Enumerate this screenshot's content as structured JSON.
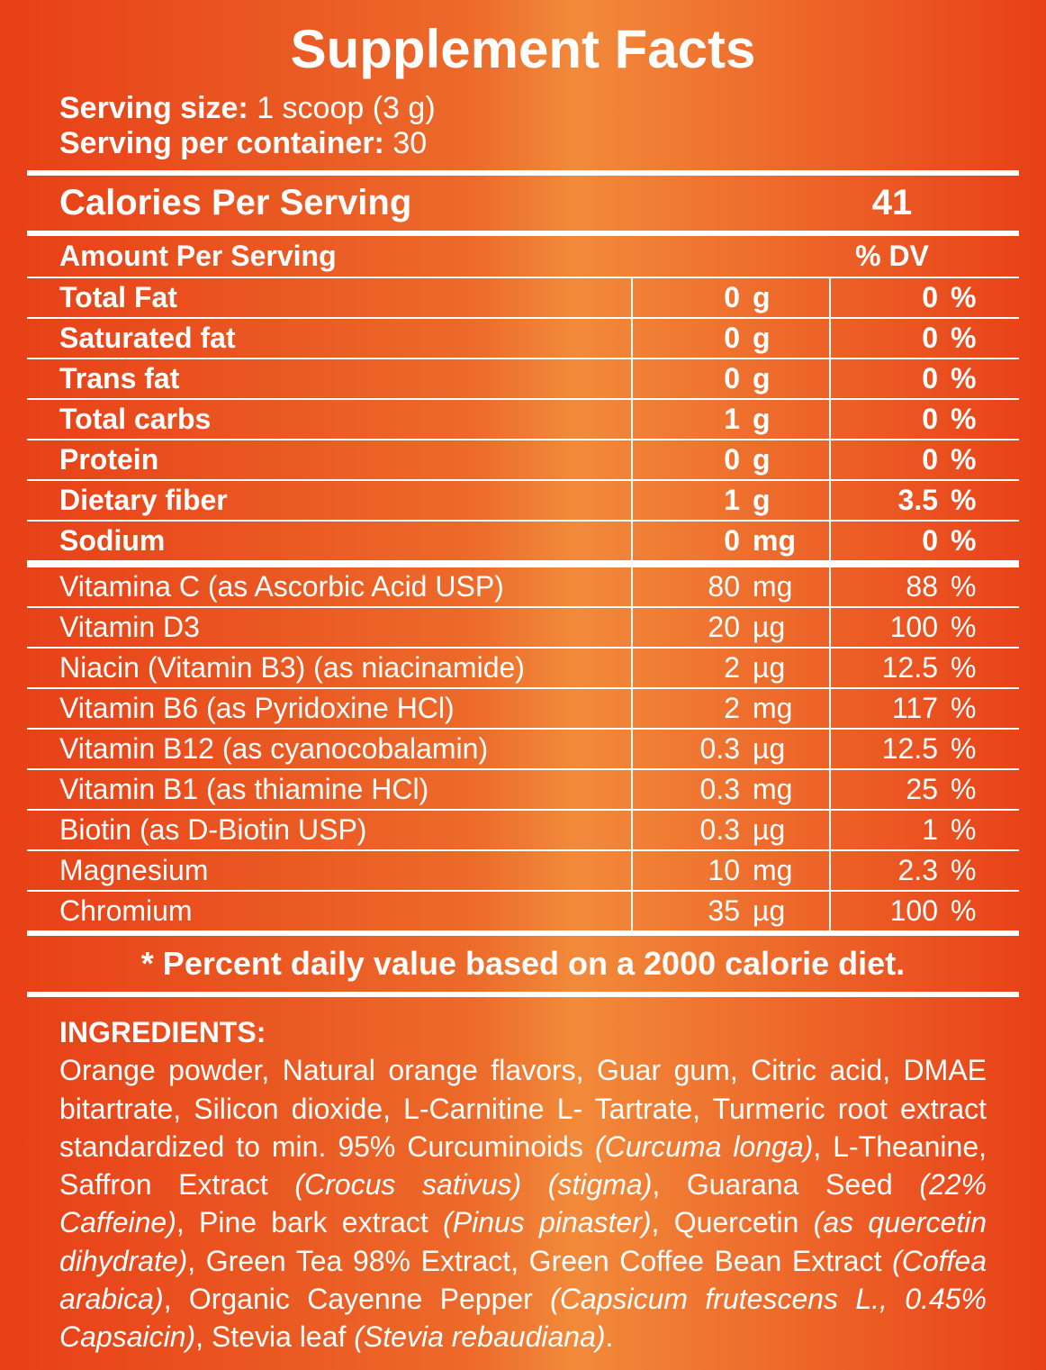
{
  "title": "Supplement Facts",
  "serving": {
    "size_label": "Serving size:",
    "size_value": " 1 scoop (3 g)",
    "per_container_label": "Serving per container:",
    "per_container_value": " 30"
  },
  "calories": {
    "label": "Calories Per Serving",
    "value": "41"
  },
  "amount_header": {
    "label": "Amount Per Serving",
    "dv": "% DV"
  },
  "macros": [
    {
      "name": "Total Fat",
      "amt": "0",
      "unit": "g",
      "dv": "0",
      "pct": "%"
    },
    {
      "name": "Saturated fat",
      "amt": "0",
      "unit": "g",
      "dv": "0",
      "pct": "%"
    },
    {
      "name": "Trans fat",
      "amt": "0",
      "unit": "g",
      "dv": "0",
      "pct": "%"
    },
    {
      "name": "Total carbs",
      "amt": "1",
      "unit": "g",
      "dv": "0",
      "pct": "%"
    },
    {
      "name": "Protein",
      "amt": "0",
      "unit": "g",
      "dv": "0",
      "pct": "%"
    },
    {
      "name": "Dietary fiber",
      "amt": "1",
      "unit": "g",
      "dv": "3.5",
      "pct": "%"
    },
    {
      "name": "Sodium",
      "amt": "0",
      "unit": "mg",
      "dv": "0",
      "pct": "%"
    }
  ],
  "vitamins": [
    {
      "name": "Vitamina C (as Ascorbic Acid USP)",
      "amt": "80",
      "unit": "mg",
      "dv": "88",
      "pct": "%"
    },
    {
      "name": "Vitamin D3",
      "amt": "20",
      "unit": "µg",
      "dv": "100",
      "pct": "%"
    },
    {
      "name": "Niacin (Vitamin B3) (as niacinamide)",
      "amt": "2",
      "unit": "µg",
      "dv": "12.5",
      "pct": " %"
    },
    {
      "name": "Vitamin B6 (as Pyridoxine HCl)",
      "amt": "2",
      "unit": "mg",
      "dv": "117",
      "pct": " %"
    },
    {
      "name": "Vitamin B12 (as cyanocobalamin)",
      "amt": "0.3",
      "unit": "µg",
      "dv": "12.5",
      "pct": " %"
    },
    {
      "name": "Vitamin B1 (as thiamine HCl)",
      "amt": "0.3",
      "unit": "mg",
      "dv": "25",
      "pct": " %"
    },
    {
      "name": "Biotin (as D-Biotin USP)",
      "amt": "0.3",
      "unit": "µg",
      "dv": "1",
      "pct": " %"
    },
    {
      "name": "Magnesium",
      "amt": "10",
      "unit": " mg",
      "dv": "2.3",
      "pct": " %"
    },
    {
      "name": "Chromium",
      "amt": "35",
      "unit": "µg",
      "dv": "100",
      "pct": " %"
    }
  ],
  "footnote": "* Percent daily value based on a 2000 calorie diet.",
  "ingredients": {
    "heading": "INGREDIENTS:",
    "body_html": "Orange powder, Natural orange flavors, Guar gum, Citric acid, DMAE bitartrate, Silicon dioxide, L-Carnitine L- Tartrate, Turmeric root extract standardized to min. 95% Curcuminoids <em>(Curcuma longa)</em>, L-Theanine, Saffron Extract <em>(Crocus sativus) (stigma)</em>, Guarana Seed <em>(22% Caffeine)</em>, Pine bark extract <em>(Pinus pinaster)</em>, Quercetin <em>(as quercetin dihydrate)</em>, Green Tea 98% Extract, Green Coffee Bean Extract <em>(Coffea arabica)</em>, Organic Cayenne Pepper <em>(Capsicum frutescens L., 0.45% Capsaicin)</em>, Stevia leaf <em>(Stevia rebaudiana)</em>."
  },
  "style": {
    "background_gradient": [
      "#e83f17",
      "#ec6a2a",
      "#f28a3a",
      "#e83f17"
    ],
    "text_color": "#ffffff",
    "rule_color": "#ffffff",
    "title_fontsize": 60,
    "body_fontsize": 32
  }
}
